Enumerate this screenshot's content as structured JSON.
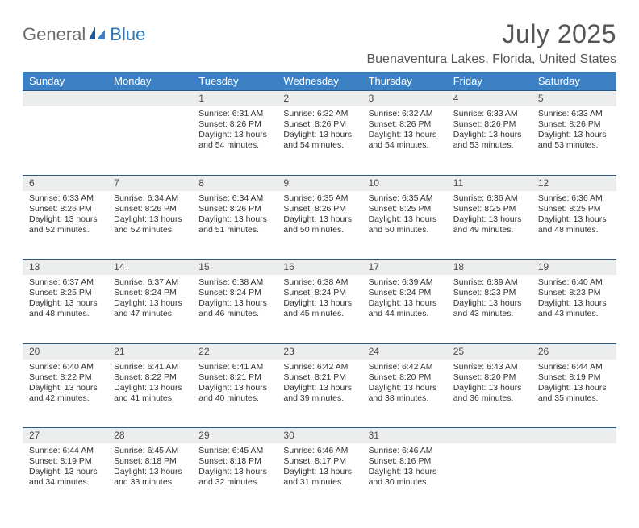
{
  "logo": {
    "word1": "General",
    "word2": "Blue"
  },
  "title": "July 2025",
  "location": "Buenaventura Lakes, Florida, United States",
  "colors": {
    "header_bg": "#3a80c3",
    "header_text": "#ffffff",
    "daynum_bg": "#eceded",
    "daynum_border": "#2d5b87",
    "body_text": "#333333",
    "title_text": "#555555",
    "logo_gray": "#6a6a6a",
    "logo_blue": "#2f78b8"
  },
  "typography": {
    "title_fontsize": 32,
    "location_fontsize": 16,
    "dayheader_fontsize": 13,
    "daynum_fontsize": 12,
    "cell_fontsize": 10.5
  },
  "day_headers": [
    "Sunday",
    "Monday",
    "Tuesday",
    "Wednesday",
    "Thursday",
    "Friday",
    "Saturday"
  ],
  "weeks": [
    {
      "nums": [
        "",
        "",
        "1",
        "2",
        "3",
        "4",
        "5"
      ],
      "cells": [
        null,
        null,
        {
          "sunrise": "Sunrise: 6:31 AM",
          "sunset": "Sunset: 8:26 PM",
          "day1": "Daylight: 13 hours",
          "day2": "and 54 minutes."
        },
        {
          "sunrise": "Sunrise: 6:32 AM",
          "sunset": "Sunset: 8:26 PM",
          "day1": "Daylight: 13 hours",
          "day2": "and 54 minutes."
        },
        {
          "sunrise": "Sunrise: 6:32 AM",
          "sunset": "Sunset: 8:26 PM",
          "day1": "Daylight: 13 hours",
          "day2": "and 54 minutes."
        },
        {
          "sunrise": "Sunrise: 6:33 AM",
          "sunset": "Sunset: 8:26 PM",
          "day1": "Daylight: 13 hours",
          "day2": "and 53 minutes."
        },
        {
          "sunrise": "Sunrise: 6:33 AM",
          "sunset": "Sunset: 8:26 PM",
          "day1": "Daylight: 13 hours",
          "day2": "and 53 minutes."
        }
      ]
    },
    {
      "nums": [
        "6",
        "7",
        "8",
        "9",
        "10",
        "11",
        "12"
      ],
      "cells": [
        {
          "sunrise": "Sunrise: 6:33 AM",
          "sunset": "Sunset: 8:26 PM",
          "day1": "Daylight: 13 hours",
          "day2": "and 52 minutes."
        },
        {
          "sunrise": "Sunrise: 6:34 AM",
          "sunset": "Sunset: 8:26 PM",
          "day1": "Daylight: 13 hours",
          "day2": "and 52 minutes."
        },
        {
          "sunrise": "Sunrise: 6:34 AM",
          "sunset": "Sunset: 8:26 PM",
          "day1": "Daylight: 13 hours",
          "day2": "and 51 minutes."
        },
        {
          "sunrise": "Sunrise: 6:35 AM",
          "sunset": "Sunset: 8:26 PM",
          "day1": "Daylight: 13 hours",
          "day2": "and 50 minutes."
        },
        {
          "sunrise": "Sunrise: 6:35 AM",
          "sunset": "Sunset: 8:25 PM",
          "day1": "Daylight: 13 hours",
          "day2": "and 50 minutes."
        },
        {
          "sunrise": "Sunrise: 6:36 AM",
          "sunset": "Sunset: 8:25 PM",
          "day1": "Daylight: 13 hours",
          "day2": "and 49 minutes."
        },
        {
          "sunrise": "Sunrise: 6:36 AM",
          "sunset": "Sunset: 8:25 PM",
          "day1": "Daylight: 13 hours",
          "day2": "and 48 minutes."
        }
      ]
    },
    {
      "nums": [
        "13",
        "14",
        "15",
        "16",
        "17",
        "18",
        "19"
      ],
      "cells": [
        {
          "sunrise": "Sunrise: 6:37 AM",
          "sunset": "Sunset: 8:25 PM",
          "day1": "Daylight: 13 hours",
          "day2": "and 48 minutes."
        },
        {
          "sunrise": "Sunrise: 6:37 AM",
          "sunset": "Sunset: 8:24 PM",
          "day1": "Daylight: 13 hours",
          "day2": "and 47 minutes."
        },
        {
          "sunrise": "Sunrise: 6:38 AM",
          "sunset": "Sunset: 8:24 PM",
          "day1": "Daylight: 13 hours",
          "day2": "and 46 minutes."
        },
        {
          "sunrise": "Sunrise: 6:38 AM",
          "sunset": "Sunset: 8:24 PM",
          "day1": "Daylight: 13 hours",
          "day2": "and 45 minutes."
        },
        {
          "sunrise": "Sunrise: 6:39 AM",
          "sunset": "Sunset: 8:24 PM",
          "day1": "Daylight: 13 hours",
          "day2": "and 44 minutes."
        },
        {
          "sunrise": "Sunrise: 6:39 AM",
          "sunset": "Sunset: 8:23 PM",
          "day1": "Daylight: 13 hours",
          "day2": "and 43 minutes."
        },
        {
          "sunrise": "Sunrise: 6:40 AM",
          "sunset": "Sunset: 8:23 PM",
          "day1": "Daylight: 13 hours",
          "day2": "and 43 minutes."
        }
      ]
    },
    {
      "nums": [
        "20",
        "21",
        "22",
        "23",
        "24",
        "25",
        "26"
      ],
      "cells": [
        {
          "sunrise": "Sunrise: 6:40 AM",
          "sunset": "Sunset: 8:22 PM",
          "day1": "Daylight: 13 hours",
          "day2": "and 42 minutes."
        },
        {
          "sunrise": "Sunrise: 6:41 AM",
          "sunset": "Sunset: 8:22 PM",
          "day1": "Daylight: 13 hours",
          "day2": "and 41 minutes."
        },
        {
          "sunrise": "Sunrise: 6:41 AM",
          "sunset": "Sunset: 8:21 PM",
          "day1": "Daylight: 13 hours",
          "day2": "and 40 minutes."
        },
        {
          "sunrise": "Sunrise: 6:42 AM",
          "sunset": "Sunset: 8:21 PM",
          "day1": "Daylight: 13 hours",
          "day2": "and 39 minutes."
        },
        {
          "sunrise": "Sunrise: 6:42 AM",
          "sunset": "Sunset: 8:20 PM",
          "day1": "Daylight: 13 hours",
          "day2": "and 38 minutes."
        },
        {
          "sunrise": "Sunrise: 6:43 AM",
          "sunset": "Sunset: 8:20 PM",
          "day1": "Daylight: 13 hours",
          "day2": "and 36 minutes."
        },
        {
          "sunrise": "Sunrise: 6:44 AM",
          "sunset": "Sunset: 8:19 PM",
          "day1": "Daylight: 13 hours",
          "day2": "and 35 minutes."
        }
      ]
    },
    {
      "nums": [
        "27",
        "28",
        "29",
        "30",
        "31",
        "",
        ""
      ],
      "cells": [
        {
          "sunrise": "Sunrise: 6:44 AM",
          "sunset": "Sunset: 8:19 PM",
          "day1": "Daylight: 13 hours",
          "day2": "and 34 minutes."
        },
        {
          "sunrise": "Sunrise: 6:45 AM",
          "sunset": "Sunset: 8:18 PM",
          "day1": "Daylight: 13 hours",
          "day2": "and 33 minutes."
        },
        {
          "sunrise": "Sunrise: 6:45 AM",
          "sunset": "Sunset: 8:18 PM",
          "day1": "Daylight: 13 hours",
          "day2": "and 32 minutes."
        },
        {
          "sunrise": "Sunrise: 6:46 AM",
          "sunset": "Sunset: 8:17 PM",
          "day1": "Daylight: 13 hours",
          "day2": "and 31 minutes."
        },
        {
          "sunrise": "Sunrise: 6:46 AM",
          "sunset": "Sunset: 8:16 PM",
          "day1": "Daylight: 13 hours",
          "day2": "and 30 minutes."
        },
        null,
        null
      ]
    }
  ]
}
